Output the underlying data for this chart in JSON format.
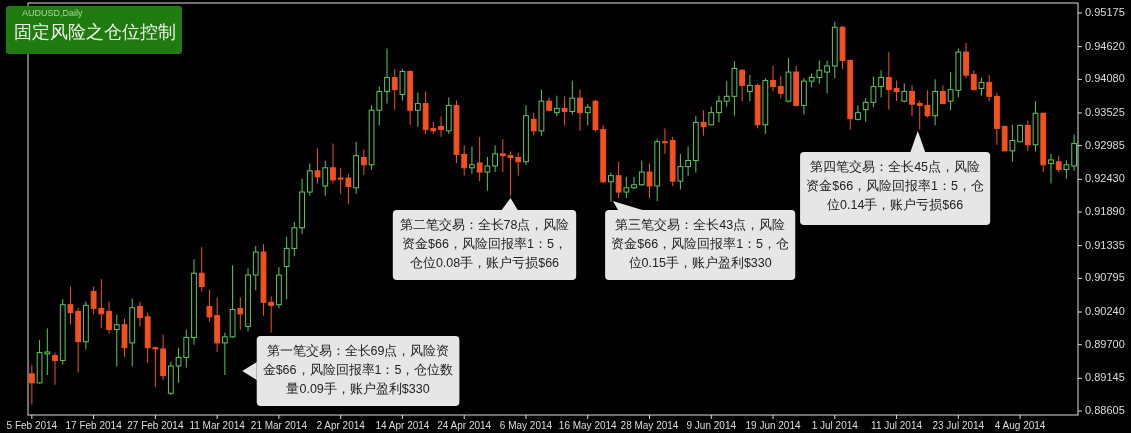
{
  "chart_data": {
    "type": "candlestick",
    "title": "固定风险之仓位控制",
    "categories": [
      "5 Feb 2014",
      null,
      null,
      null,
      null,
      null,
      null,
      null,
      "17 Feb 2014",
      null,
      null,
      null,
      null,
      null,
      null,
      null,
      "27 Feb 2014",
      null,
      null,
      null,
      null,
      null,
      null,
      null,
      "11 Mar 2014",
      null,
      null,
      null,
      null,
      null,
      null,
      null,
      "21 Mar 2014",
      null,
      null,
      null,
      null,
      null,
      null,
      null,
      "2 Apr 2014",
      null,
      null,
      null,
      null,
      null,
      null,
      null,
      "14 Apr 2014",
      null,
      null,
      null,
      null,
      null,
      null,
      null,
      "24 Apr 2014",
      null,
      null,
      null,
      null,
      null,
      null,
      null,
      "6 May 2014",
      null,
      null,
      null,
      null,
      null,
      null,
      null,
      "16 May 2014",
      null,
      null,
      null,
      null,
      null,
      null,
      null,
      "28 May 2014",
      null,
      null,
      null,
      null,
      null,
      null,
      null,
      "9 Jun 2014",
      null,
      null,
      null,
      null,
      null,
      null,
      null,
      "19 Jun 2014",
      null,
      null,
      null,
      null,
      null,
      null,
      null,
      "1 Jul 2014",
      null,
      null,
      null,
      null,
      null,
      null,
      null,
      "11 Jul 2014",
      null,
      null,
      null,
      null,
      null,
      null,
      null,
      "23 Jul 2014",
      null,
      null,
      null,
      null,
      null,
      null,
      null,
      "4 Aug 2014",
      null,
      null,
      null,
      null,
      null,
      null,
      null
    ],
    "ohlc": [
      [
        0.8922,
        0.8937,
        0.8871,
        0.8907
      ],
      [
        0.8907,
        0.8978,
        0.8906,
        0.8957
      ],
      [
        0.8955,
        0.8997,
        0.892,
        0.8958
      ],
      [
        0.8952,
        0.8957,
        0.8904,
        0.8944
      ],
      [
        0.8944,
        0.9045,
        0.8937,
        0.9036
      ],
      [
        0.9036,
        0.9066,
        0.9003,
        0.9023
      ],
      [
        0.9025,
        0.9031,
        0.8924,
        0.8975
      ],
      [
        0.8975,
        0.9041,
        0.8962,
        0.9035
      ],
      [
        0.9058,
        0.9066,
        0.902,
        0.903
      ],
      [
        0.903,
        0.9078,
        0.8998,
        0.9021
      ],
      [
        0.9025,
        0.9041,
        0.8988,
        0.8995
      ],
      [
        0.8995,
        0.902,
        0.8934,
        0.9003
      ],
      [
        0.9003,
        0.9013,
        0.895,
        0.8965
      ],
      [
        0.8973,
        0.9046,
        0.8934,
        0.9031
      ],
      [
        0.9033,
        0.9041,
        0.9,
        0.9015
      ],
      [
        0.9016,
        0.9023,
        0.894,
        0.8965
      ],
      [
        0.8965,
        0.8967,
        0.89,
        0.8963
      ],
      [
        0.8963,
        0.8987,
        0.8912,
        0.8919
      ],
      [
        0.889,
        0.8942,
        0.8887,
        0.8935
      ],
      [
        0.8935,
        0.8965,
        0.8907,
        0.8949
      ],
      [
        0.8949,
        0.8995,
        0.8932,
        0.8982
      ],
      [
        0.8982,
        0.9111,
        0.897,
        0.9088
      ],
      [
        0.9088,
        0.9131,
        0.9058,
        0.9066
      ],
      [
        0.9033,
        0.9061,
        0.9008,
        0.9016
      ],
      [
        0.9018,
        0.9048,
        0.8958,
        0.8973
      ],
      [
        0.8973,
        0.899,
        0.892,
        0.8983
      ],
      [
        0.8983,
        0.9101,
        0.8981,
        0.9028
      ],
      [
        0.903,
        0.9048,
        0.8995,
        0.9021
      ],
      [
        0.9,
        0.9096,
        0.8992,
        0.9085
      ],
      [
        0.9085,
        0.9133,
        0.906,
        0.9123
      ],
      [
        0.9123,
        0.9136,
        0.9018,
        0.904
      ],
      [
        0.904,
        0.905,
        0.899,
        0.9035
      ],
      [
        0.9036,
        0.9098,
        0.903,
        0.9085
      ],
      [
        0.9099,
        0.9148,
        0.9045,
        0.9129
      ],
      [
        0.9129,
        0.9173,
        0.9116,
        0.9163
      ],
      [
        0.9163,
        0.9244,
        0.9153,
        0.9222
      ],
      [
        0.9222,
        0.9269,
        0.9216,
        0.9257
      ],
      [
        0.9257,
        0.9294,
        0.9236,
        0.9247
      ],
      [
        0.9232,
        0.9274,
        0.9216,
        0.9262
      ],
      [
        0.9262,
        0.9302,
        0.9236,
        0.9242
      ],
      [
        0.9245,
        0.9262,
        0.9219,
        0.9244
      ],
      [
        0.9245,
        0.9252,
        0.9202,
        0.9231
      ],
      [
        0.9229,
        0.9305,
        0.9219,
        0.9282
      ],
      [
        0.9279,
        0.9292,
        0.925,
        0.9267
      ],
      [
        0.9267,
        0.9365,
        0.9259,
        0.9357
      ],
      [
        0.9357,
        0.9396,
        0.9332,
        0.9388
      ],
      [
        0.9388,
        0.9459,
        0.9368,
        0.9411
      ],
      [
        0.9411,
        0.9425,
        0.9358,
        0.9391
      ],
      [
        0.9383,
        0.9425,
        0.9373,
        0.9421
      ],
      [
        0.9421,
        0.9423,
        0.9333,
        0.9357
      ],
      [
        0.9357,
        0.9386,
        0.933,
        0.9368
      ],
      [
        0.9368,
        0.9388,
        0.9318,
        0.9325
      ],
      [
        0.9327,
        0.9338,
        0.9318,
        0.9323
      ],
      [
        0.933,
        0.9347,
        0.9313,
        0.9325
      ],
      [
        0.9323,
        0.9378,
        0.9318,
        0.9365
      ],
      [
        0.9365,
        0.9373,
        0.927,
        0.9284
      ],
      [
        0.9284,
        0.9299,
        0.9249,
        0.9262
      ],
      [
        0.9262,
        0.9297,
        0.9252,
        0.9267
      ],
      [
        0.927,
        0.9313,
        0.924,
        0.9255
      ],
      [
        0.9255,
        0.928,
        0.9224,
        0.9265
      ],
      [
        0.9265,
        0.9299,
        0.9255,
        0.9285
      ],
      [
        0.9285,
        0.9309,
        0.9255,
        0.9282
      ],
      [
        0.9282,
        0.9289,
        0.9216,
        0.9279
      ],
      [
        0.9279,
        0.9287,
        0.9249,
        0.9272
      ],
      [
        0.9272,
        0.9365,
        0.9267,
        0.9348
      ],
      [
        0.9342,
        0.9353,
        0.9315,
        0.9323
      ],
      [
        0.9323,
        0.9391,
        0.9315,
        0.9372
      ],
      [
        0.9372,
        0.9378,
        0.9355,
        0.9357
      ],
      [
        0.9353,
        0.9381,
        0.9347,
        0.936
      ],
      [
        0.936,
        0.938,
        0.9332,
        0.9355
      ],
      [
        0.9355,
        0.9406,
        0.935,
        0.9377
      ],
      [
        0.9377,
        0.9391,
        0.9323,
        0.9353
      ],
      [
        0.9353,
        0.9367,
        0.9332,
        0.9362
      ],
      [
        0.9372,
        0.9374,
        0.9322,
        0.9325
      ],
      [
        0.9325,
        0.9332,
        0.9237,
        0.9239
      ],
      [
        0.9239,
        0.9254,
        0.9206,
        0.9249
      ],
      [
        0.9249,
        0.9272,
        0.9212,
        0.9222
      ],
      [
        0.9222,
        0.9247,
        0.9212,
        0.9229
      ],
      [
        0.9229,
        0.9247,
        0.9227,
        0.9234
      ],
      [
        0.9234,
        0.9274,
        0.9232,
        0.9255
      ],
      [
        0.9255,
        0.9269,
        0.9212,
        0.9232
      ],
      [
        0.9232,
        0.931,
        0.9207,
        0.9305
      ],
      [
        0.9305,
        0.9327,
        0.9285,
        0.9304
      ],
      [
        0.9307,
        0.9313,
        0.9232,
        0.924
      ],
      [
        0.924,
        0.9285,
        0.9226,
        0.9264
      ],
      [
        0.9264,
        0.9297,
        0.9249,
        0.9274
      ],
      [
        0.9274,
        0.9347,
        0.9254,
        0.9337
      ],
      [
        0.9337,
        0.9357,
        0.9315,
        0.933
      ],
      [
        0.9333,
        0.9363,
        0.9332,
        0.9353
      ],
      [
        0.9353,
        0.9381,
        0.9337,
        0.9372
      ],
      [
        0.9372,
        0.9405,
        0.9363,
        0.938
      ],
      [
        0.938,
        0.9438,
        0.9348,
        0.9426
      ],
      [
        0.9423,
        0.9425,
        0.9372,
        0.9398
      ],
      [
        0.9388,
        0.9415,
        0.9372,
        0.9398
      ],
      [
        0.9398,
        0.9401,
        0.9327,
        0.9333
      ],
      [
        0.9333,
        0.941,
        0.9318,
        0.9406
      ],
      [
        0.9406,
        0.943,
        0.9388,
        0.9396
      ],
      [
        0.9396,
        0.9413,
        0.9377,
        0.9385
      ],
      [
        0.9372,
        0.9443,
        0.937,
        0.942
      ],
      [
        0.942,
        0.943,
        0.9363,
        0.9365
      ],
      [
        0.9365,
        0.941,
        0.935,
        0.9405
      ],
      [
        0.9405,
        0.9418,
        0.9395,
        0.9411
      ],
      [
        0.9411,
        0.9439,
        0.9401,
        0.9423
      ],
      [
        0.942,
        0.9439,
        0.9385,
        0.943
      ],
      [
        0.943,
        0.9503,
        0.941,
        0.9494
      ],
      [
        0.9494,
        0.9496,
        0.9425,
        0.9439
      ],
      [
        0.9439,
        0.9441,
        0.9325,
        0.9343
      ],
      [
        0.9342,
        0.9365,
        0.934,
        0.9353
      ],
      [
        0.9358,
        0.9377,
        0.9338,
        0.937
      ],
      [
        0.937,
        0.9413,
        0.9362,
        0.9396
      ],
      [
        0.9396,
        0.9423,
        0.9378,
        0.9411
      ],
      [
        0.9411,
        0.9453,
        0.9358,
        0.9391
      ],
      [
        0.9393,
        0.9406,
        0.9372,
        0.9388
      ],
      [
        0.9372,
        0.9401,
        0.937,
        0.9388
      ],
      [
        0.9388,
        0.9398,
        0.9347,
        0.9367
      ],
      [
        0.9368,
        0.9373,
        0.9325,
        0.9365
      ],
      [
        0.9365,
        0.939,
        0.9345,
        0.9348
      ],
      [
        0.9348,
        0.9408,
        0.9332,
        0.9388
      ],
      [
        0.9388,
        0.9398,
        0.9367,
        0.9368
      ],
      [
        0.9372,
        0.942,
        0.9357,
        0.9391
      ],
      [
        0.939,
        0.9459,
        0.9378,
        0.9453
      ],
      [
        0.9453,
        0.9468,
        0.941,
        0.9415
      ],
      [
        0.9416,
        0.9423,
        0.939,
        0.9391
      ],
      [
        0.9393,
        0.9411,
        0.9381,
        0.9403
      ],
      [
        0.9403,
        0.9415,
        0.9372,
        0.938
      ],
      [
        0.938,
        0.9386,
        0.93,
        0.9327
      ],
      [
        0.933,
        0.9332,
        0.9289,
        0.929
      ],
      [
        0.929,
        0.9333,
        0.9272,
        0.9307
      ],
      [
        0.9305,
        0.9333,
        0.9304,
        0.9332
      ],
      [
        0.9332,
        0.934,
        0.929,
        0.93
      ],
      [
        0.93,
        0.9372,
        0.9289,
        0.9352
      ],
      [
        0.9352,
        0.9353,
        0.9255,
        0.9267
      ],
      [
        0.9269,
        0.9285,
        0.9236,
        0.9275
      ],
      [
        0.9272,
        0.9282,
        0.9255,
        0.9259
      ],
      [
        0.9259,
        0.9274,
        0.9244,
        0.9267
      ],
      [
        0.9265,
        0.9317,
        0.9257,
        0.9302
      ]
    ],
    "colors": [
      "#f4511e",
      "#5cc85c",
      "#5cc85c",
      "#f4511e",
      "#5cc85c",
      "#f4511e",
      "#f4511e",
      "#5cc85c",
      "#f4511e",
      "#f4511e",
      "#f4511e",
      "#5cc85c",
      "#f4511e",
      "#5cc85c",
      "#f4511e",
      "#f4511e",
      "#f4511e",
      "#f4511e",
      "#5cc85c",
      "#5cc85c",
      "#5cc85c",
      "#5cc85c",
      "#f4511e",
      "#f4511e",
      "#f4511e",
      "#5cc85c",
      "#5cc85c",
      "#f4511e",
      "#5cc85c",
      "#5cc85c",
      "#f4511e",
      "#f4511e",
      "#5cc85c",
      "#5cc85c",
      "#5cc85c",
      "#5cc85c",
      "#5cc85c",
      "#f4511e",
      "#5cc85c",
      "#f4511e",
      "#f4511e",
      "#f4511e",
      "#5cc85c",
      "#f4511e",
      "#5cc85c",
      "#5cc85c",
      "#5cc85c",
      "#f4511e",
      "#5cc85c",
      "#f4511e",
      "#5cc85c",
      "#f4511e",
      "#f4511e",
      "#f4511e",
      "#5cc85c",
      "#f4511e",
      "#f4511e",
      "#5cc85c",
      "#f4511e",
      "#5cc85c",
      "#5cc85c",
      "#f4511e",
      "#f4511e",
      "#f4511e",
      "#5cc85c",
      "#f4511e",
      "#5cc85c",
      "#f4511e",
      "#5cc85c",
      "#f4511e",
      "#5cc85c",
      "#f4511e",
      "#5cc85c",
      "#f4511e",
      "#f4511e",
      "#5cc85c",
      "#f4511e",
      "#5cc85c",
      "#5cc85c",
      "#5cc85c",
      "#f4511e",
      "#5cc85c",
      "#f4511e",
      "#f4511e",
      "#5cc85c",
      "#5cc85c",
      "#5cc85c",
      "#f4511e",
      "#5cc85c",
      "#5cc85c",
      "#5cc85c",
      "#5cc85c",
      "#f4511e",
      "#5cc85c",
      "#f4511e",
      "#5cc85c",
      "#f4511e",
      "#f4511e",
      "#5cc85c",
      "#f4511e",
      "#5cc85c",
      "#5cc85c",
      "#5cc85c",
      "#5cc85c",
      "#5cc85c",
      "#f4511e",
      "#f4511e",
      "#5cc85c",
      "#5cc85c",
      "#5cc85c",
      "#5cc85c",
      "#f4511e",
      "#f4511e",
      "#5cc85c",
      "#f4511e",
      "#f4511e",
      "#f4511e",
      "#5cc85c",
      "#f4511e",
      "#5cc85c",
      "#5cc85c",
      "#f4511e",
      "#f4511e",
      "#5cc85c",
      "#f4511e",
      "#f4511e",
      "#f4511e",
      "#5cc85c",
      "#5cc85c",
      "#f4511e",
      "#5cc85c",
      "#f4511e",
      "#5cc85c",
      "#f4511e",
      "#5cc85c",
      "#5cc85c"
    ],
    "ylim": [
      0.8854,
      0.9534
    ],
    "yticks": [
      0.95175,
      {
        "value": 0.9462,
        "label": "0.94620"
      },
      {
        "value": 0.9408,
        "label": "0.94080"
      },
      0.93525,
      0.92985,
      {
        "value": 0.9243,
        "label": "0.92430"
      },
      {
        "value": 0.9189,
        "label": "0.91890"
      },
      0.91335,
      0.90795,
      {
        "value": 0.9024,
        "label": "0.90240"
      },
      {
        "value": 0.897,
        "label": "0.89700"
      },
      0.89145,
      0.88605
    ],
    "annotations": [
      "AUDUSD,Daily",
      "第一笔交易：全长69点，风险资金$66，风险回报率1：5，仓位数量0.09手，账户盈利$330",
      "第二笔交易：全长78点，风险资金$66，风险回报率1：5，仓位0.08手，账户亏损$66",
      "第三笔交易：全长43点，风险资金$66，风险回报率1：5，仓位0.15手，账户盈利$330",
      "第四笔交易：全长45点，风险资金$66，风险回报率1：5，仓位0.14手，账户亏损$66"
    ]
  }
}
